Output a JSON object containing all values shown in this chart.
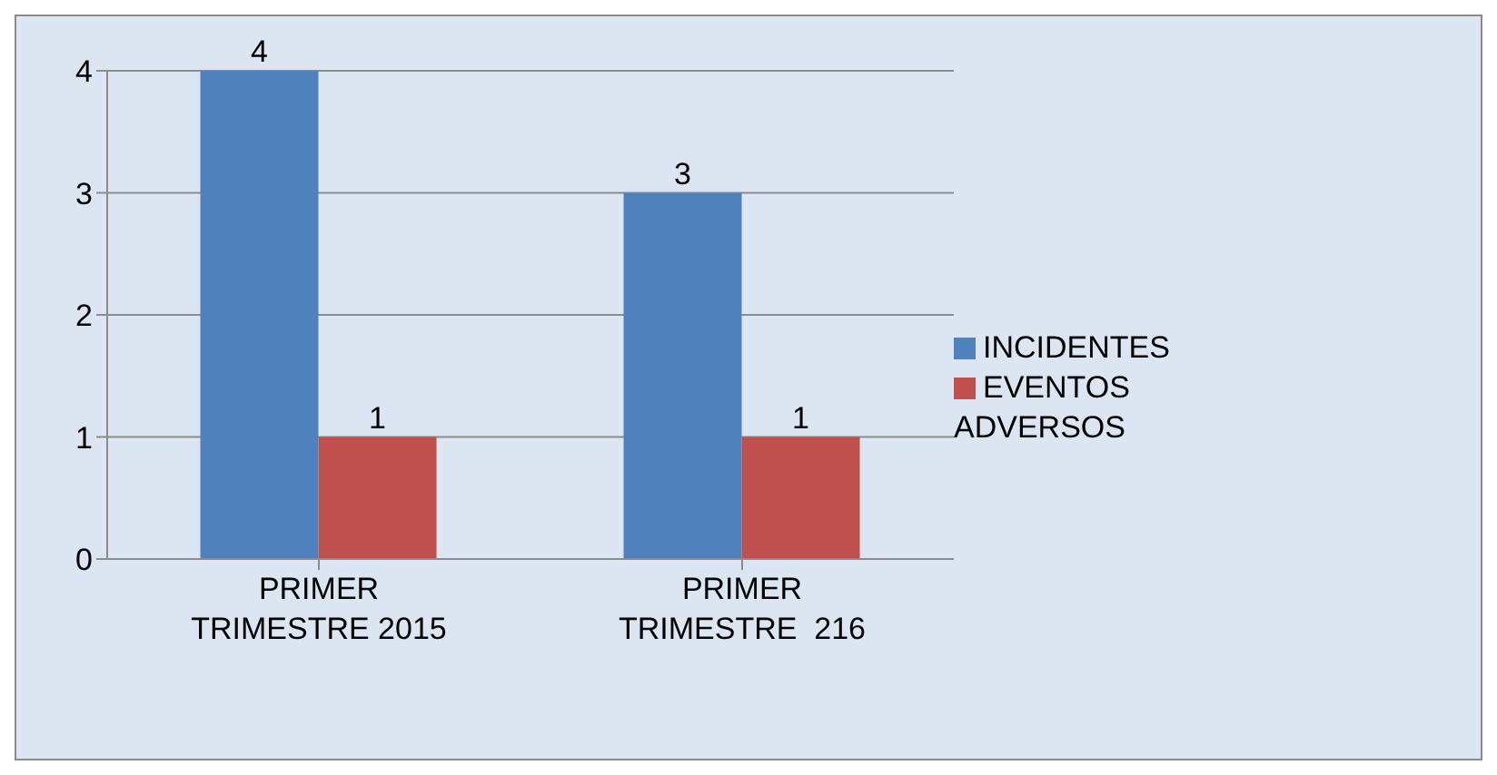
{
  "chart_data": {
    "type": "bar",
    "categories": [
      "PRIMER TRIMESTRE 2015",
      "PRIMER TRIMESTRE  216"
    ],
    "series": [
      {
        "name": "INCIDENTES",
        "color": "#4f81bd",
        "values": [
          4,
          3
        ]
      },
      {
        "name": "EVENTOS ADVERSOS",
        "color": "#c0504d",
        "values": [
          1,
          1
        ]
      }
    ],
    "ylim": [
      0,
      4
    ],
    "yticks": [
      0,
      1,
      2,
      3,
      4
    ],
    "grid": "y",
    "legend": "right",
    "data_labels": true
  }
}
